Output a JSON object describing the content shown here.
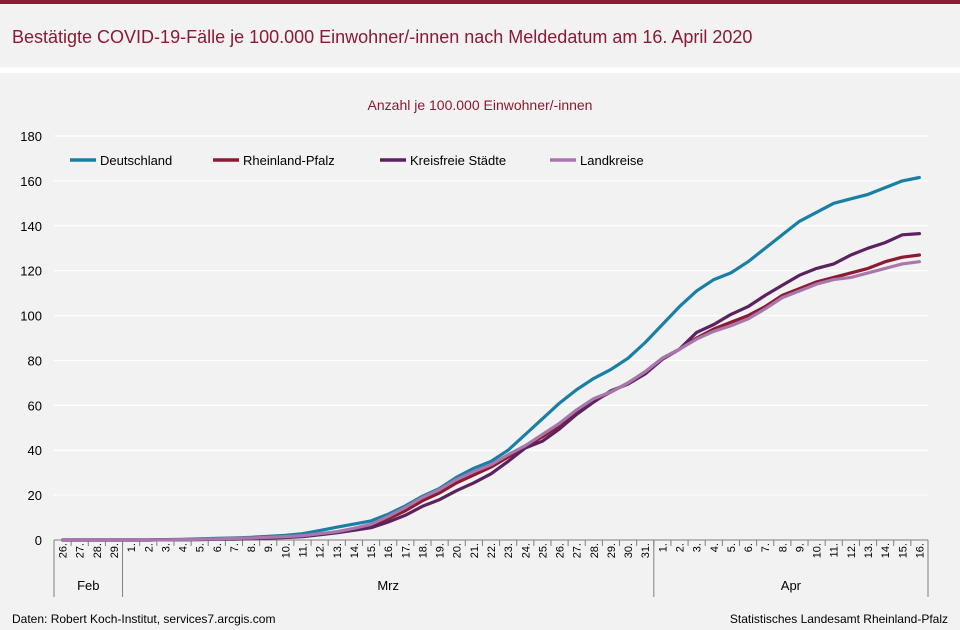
{
  "title": "Bestätigte COVID-19-Fälle je 100.000 Einwohner/-innen nach Meldedatum am 16. April 2020",
  "chart_data": {
    "type": "line",
    "subtitle": "Anzahl je 100.000 Einwohner/-innen",
    "ylim": [
      0,
      180
    ],
    "yticks": [
      0,
      20,
      40,
      60,
      80,
      100,
      120,
      140,
      160,
      180
    ],
    "legend_position": "top-left",
    "categories": [
      "26.",
      "27.",
      "28.",
      "29.",
      "1.",
      "2.",
      "3.",
      "4.",
      "5.",
      "6.",
      "7.",
      "8.",
      "9.",
      "10.",
      "11.",
      "12.",
      "13.",
      "14.",
      "15.",
      "16.",
      "17.",
      "18.",
      "19.",
      "20.",
      "21.",
      "22.",
      "23.",
      "24.",
      "25.",
      "26.",
      "27.",
      "28.",
      "29.",
      "30.",
      "31.",
      "1.",
      "2.",
      "3.",
      "4.",
      "5.",
      "6.",
      "7.",
      "8.",
      "9.",
      "10.",
      "11.",
      "12.",
      "13.",
      "14.",
      "15.",
      "16."
    ],
    "month_groups": [
      {
        "label": "Feb",
        "start": 0,
        "end": 3
      },
      {
        "label": "Mrz",
        "start": 4,
        "end": 34
      },
      {
        "label": "Apr",
        "start": 35,
        "end": 50
      }
    ],
    "series": [
      {
        "name": "Deutschland",
        "color": "#1a7fa5",
        "values": [
          0,
          0,
          0,
          0,
          0,
          0,
          0.2,
          0.3,
          0.5,
          0.7,
          0.9,
          1.2,
          1.6,
          2.1,
          2.8,
          4.2,
          5.7,
          7.1,
          8.5,
          11.5,
          15.2,
          19.5,
          23,
          28,
          32,
          35,
          40,
          47,
          54,
          61,
          67,
          72,
          76,
          81,
          88,
          96,
          104,
          111,
          116,
          119,
          124,
          130,
          136,
          142,
          146,
          150,
          152,
          154,
          157,
          160,
          161.5
        ]
      },
      {
        "name": "Rheinland-Pfalz",
        "color": "#8b1a32",
        "values": [
          0,
          0,
          0,
          0,
          0,
          0,
          0.1,
          0.2,
          0.3,
          0.5,
          0.7,
          0.9,
          1.1,
          1.4,
          1.8,
          2.6,
          3.5,
          4.8,
          6.5,
          9.5,
          13,
          17.5,
          21,
          25.5,
          29,
          32.5,
          37,
          41.5,
          46,
          51,
          57,
          62,
          66,
          70,
          75,
          81,
          85,
          90,
          94,
          97,
          100,
          104,
          109,
          112,
          115,
          117,
          119,
          121,
          124,
          126,
          127
        ]
      },
      {
        "name": "Kreisfreie Städte",
        "color": "#5c2260",
        "values": [
          0,
          0,
          0,
          0,
          0,
          0,
          0.1,
          0.1,
          0.2,
          0.3,
          0.4,
          0.6,
          0.8,
          1.1,
          1.5,
          2.3,
          3.2,
          4.3,
          5.5,
          8,
          11,
          15,
          18,
          22,
          25.5,
          29.5,
          35,
          41,
          44,
          49.5,
          56,
          61.5,
          66.5,
          69.5,
          74,
          80.5,
          85,
          92.5,
          96,
          100.5,
          104,
          109,
          113.5,
          118,
          121,
          123,
          127,
          130,
          132.5,
          136,
          136.5
        ]
      },
      {
        "name": "Landkreise",
        "color": "#a778ac",
        "values": [
          0,
          0,
          0,
          0,
          0,
          0,
          0.1,
          0.2,
          0.3,
          0.5,
          0.7,
          0.9,
          1.2,
          1.5,
          1.9,
          2.8,
          3.7,
          5.2,
          7,
          10.5,
          14.5,
          19,
          22.5,
          27,
          30.5,
          33.5,
          38,
          42,
          47,
          52,
          58,
          63,
          66,
          70,
          75,
          81,
          85,
          89.5,
          93,
          95.5,
          98.5,
          103,
          108,
          111,
          114,
          116,
          117,
          119,
          121,
          123,
          124
        ]
      }
    ]
  },
  "sources": {
    "left": "Daten: Robert Koch-Institut, services7.arcgis.com",
    "right": "Statistisches Landesamt Rheinland-Pfalz"
  }
}
